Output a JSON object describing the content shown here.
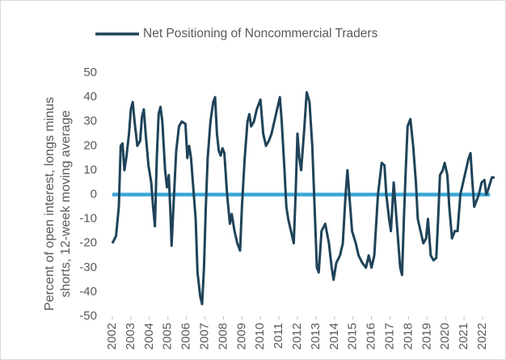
{
  "chart_data": {
    "type": "line",
    "ylabel": [
      "Percent of open interest, longs minus",
      "shorts, 12-week moving average"
    ],
    "series": [
      {
        "name": "Net Positioning of Noncommercial Traders",
        "color": "#1f4359",
        "x": [
          2002.0,
          2002.2,
          2002.35,
          2002.45,
          2002.55,
          2002.65,
          2002.75,
          2002.9,
          2003.0,
          2003.1,
          2003.2,
          2003.35,
          2003.5,
          2003.6,
          2003.7,
          2003.8,
          2003.95,
          2004.1,
          2004.2,
          2004.3,
          2004.4,
          2004.5,
          2004.6,
          2004.7,
          2004.85,
          2004.95,
          2005.05,
          2005.15,
          2005.2,
          2005.3,
          2005.45,
          2005.6,
          2005.75,
          2005.95,
          2006.05,
          2006.15,
          2006.25,
          2006.35,
          2006.5,
          2006.6,
          2006.75,
          2006.85,
          2006.95,
          2007.05,
          2007.15,
          2007.3,
          2007.45,
          2007.55,
          2007.65,
          2007.75,
          2007.85,
          2007.95,
          2008.05,
          2008.2,
          2008.35,
          2008.45,
          2008.6,
          2008.75,
          2008.9,
          2009.0,
          2009.15,
          2009.3,
          2009.4,
          2009.5,
          2009.65,
          2009.8,
          2010.0,
          2010.15,
          2010.3,
          2010.45,
          2010.6,
          2010.75,
          2010.9,
          2011.05,
          2011.15,
          2011.3,
          2011.4,
          2011.5,
          2011.65,
          2011.8,
          2011.9,
          2012.0,
          2012.1,
          2012.2,
          2012.35,
          2012.5,
          2012.65,
          2012.8,
          2012.95,
          2013.05,
          2013.15,
          2013.3,
          2013.5,
          2013.7,
          2013.85,
          2013.95,
          2014.1,
          2014.3,
          2014.45,
          2014.6,
          2014.7,
          2014.8,
          2014.95,
          2015.15,
          2015.3,
          2015.5,
          2015.7,
          2015.85,
          2016.0,
          2016.15,
          2016.35,
          2016.55,
          2016.7,
          2016.8,
          2016.95,
          2017.05,
          2017.2,
          2017.3,
          2017.45,
          2017.55,
          2017.65,
          2017.75,
          2017.85,
          2017.95,
          2018.1,
          2018.25,
          2018.4,
          2018.5,
          2018.65,
          2018.8,
          2018.95,
          2019.05,
          2019.2,
          2019.35,
          2019.5,
          2019.6,
          2019.7,
          2019.85,
          2019.95,
          2020.1,
          2020.2,
          2020.35,
          2020.5,
          2020.65,
          2020.8,
          2020.95,
          2021.1,
          2021.25,
          2021.35,
          2021.45,
          2021.55,
          2021.65,
          2021.8,
          2021.95,
          2022.1,
          2022.2,
          2022.3,
          2022.5,
          2022.65
        ],
        "values": [
          -20,
          -17,
          -5,
          20,
          21,
          10,
          15,
          25,
          35,
          38,
          30,
          20,
          22,
          32,
          35,
          25,
          12,
          5,
          -5,
          -13,
          15,
          33,
          36,
          30,
          10,
          3,
          8,
          -10,
          -21,
          -5,
          18,
          28,
          30,
          29,
          15,
          20,
          15,
          5,
          -10,
          -32,
          -42,
          -45,
          -30,
          -5,
          15,
          30,
          38,
          40,
          25,
          18,
          16,
          19,
          17,
          0,
          -12,
          -8,
          -15,
          -20,
          -23,
          -5,
          15,
          30,
          33,
          28,
          30,
          35,
          39,
          25,
          20,
          22,
          25,
          30,
          35,
          40,
          30,
          10,
          -5,
          -10,
          -15,
          -20,
          0,
          25,
          15,
          10,
          25,
          42,
          38,
          20,
          -10,
          -30,
          -32,
          -15,
          -12,
          -20,
          -30,
          -35,
          -28,
          -25,
          -20,
          0,
          10,
          0,
          -15,
          -20,
          -25,
          -28,
          -30,
          -25,
          -30,
          -25,
          0,
          13,
          12,
          0,
          -10,
          -15,
          5,
          -5,
          -20,
          -30,
          -33,
          -10,
          10,
          28,
          31,
          20,
          5,
          -10,
          -15,
          -20,
          -18,
          -10,
          -25,
          -27,
          -26,
          -10,
          8,
          10,
          13,
          8,
          -5,
          -18,
          -15,
          -15,
          0,
          5,
          10,
          15,
          17,
          5,
          -5,
          -3,
          0,
          5,
          6,
          0,
          2,
          7,
          7
        ]
      }
    ],
    "xlim": [
      2002,
      2022.8
    ],
    "xticks": [
      2002,
      2003,
      2004,
      2005,
      2006,
      2007,
      2008,
      2009,
      2010,
      2011,
      2012,
      2013,
      2014,
      2015,
      2016,
      2017,
      2018,
      2019,
      2020,
      2021,
      2022
    ],
    "ylim": [
      -50,
      50
    ],
    "yticks": [
      -50,
      -40,
      -30,
      -20,
      -10,
      0,
      10,
      20,
      30,
      40,
      50
    ],
    "reference_line": {
      "value": 0,
      "color": "#3aa6d8"
    },
    "legend": "top"
  }
}
